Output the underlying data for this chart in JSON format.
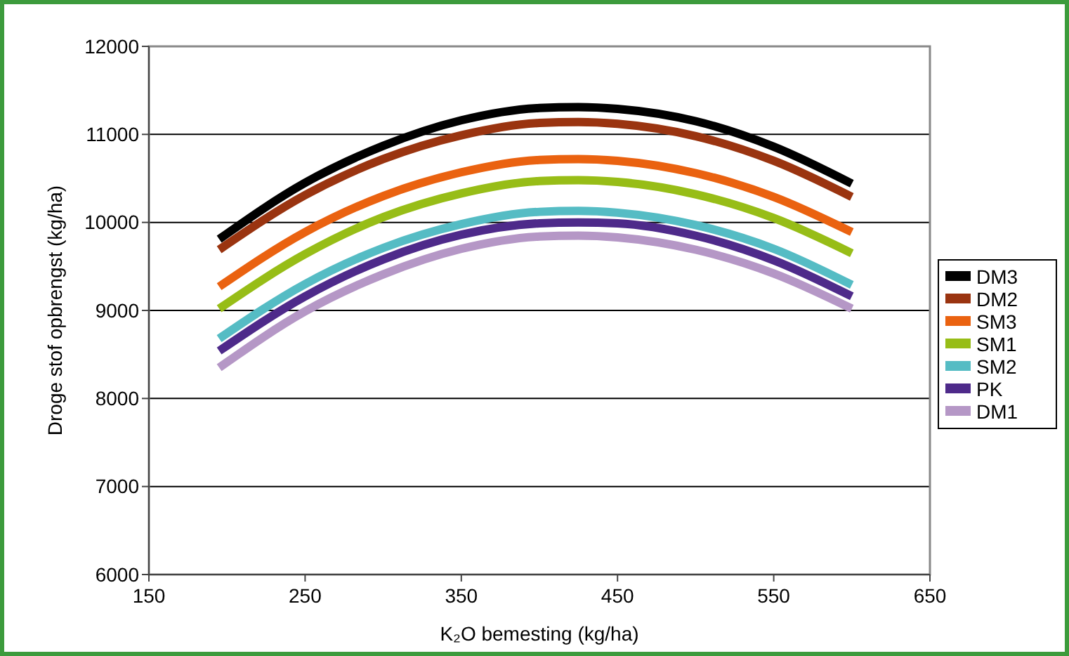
{
  "chart_data": {
    "type": "line",
    "xlabel": "K₂O bemesting (kg/ha)",
    "ylabel": "Droge stof opbrengst (kg/ha)",
    "x": [
      195,
      250,
      300,
      350,
      400,
      425,
      450,
      500,
      550,
      600
    ],
    "xlim": [
      150,
      650
    ],
    "xticks": [
      150,
      250,
      350,
      450,
      550,
      650
    ],
    "ylim": [
      6000,
      12000
    ],
    "yticks": [
      6000,
      7000,
      8000,
      9000,
      10000,
      11000,
      12000
    ],
    "grid": "y",
    "legend": "right",
    "marker": "none",
    "line_style": "solid",
    "series": [
      {
        "name": "DM3",
        "color": "#000000",
        "values": [
          9810,
          10450,
          10870,
          11160,
          11300,
          11310,
          11290,
          11150,
          10860,
          10440
        ]
      },
      {
        "name": "DM2",
        "color": "#9a3410",
        "values": [
          9690,
          10310,
          10720,
          10990,
          11130,
          11140,
          11120,
          10980,
          10700,
          10290
        ]
      },
      {
        "name": "SM3",
        "color": "#ea6210",
        "values": [
          9270,
          9890,
          10300,
          10570,
          10710,
          10720,
          10700,
          10560,
          10290,
          9890
        ]
      },
      {
        "name": "SM1",
        "color": "#97bd17",
        "values": [
          9020,
          9640,
          10060,
          10330,
          10470,
          10480,
          10460,
          10320,
          10050,
          9650
        ]
      },
      {
        "name": "SM2",
        "color": "#55bcc4",
        "values": [
          8680,
          9300,
          9710,
          9980,
          10120,
          10130,
          10110,
          9970,
          9700,
          9290
        ]
      },
      {
        "name": "PK",
        "color": "#4e2a8a",
        "values": [
          8540,
          9160,
          9580,
          9860,
          9990,
          10000,
          9990,
          9850,
          9570,
          9160
        ]
      },
      {
        "name": "DM1",
        "color": "#b597c6",
        "values": [
          8350,
          8990,
          9410,
          9700,
          9840,
          9850,
          9830,
          9690,
          9420,
          9020
        ]
      }
    ]
  }
}
